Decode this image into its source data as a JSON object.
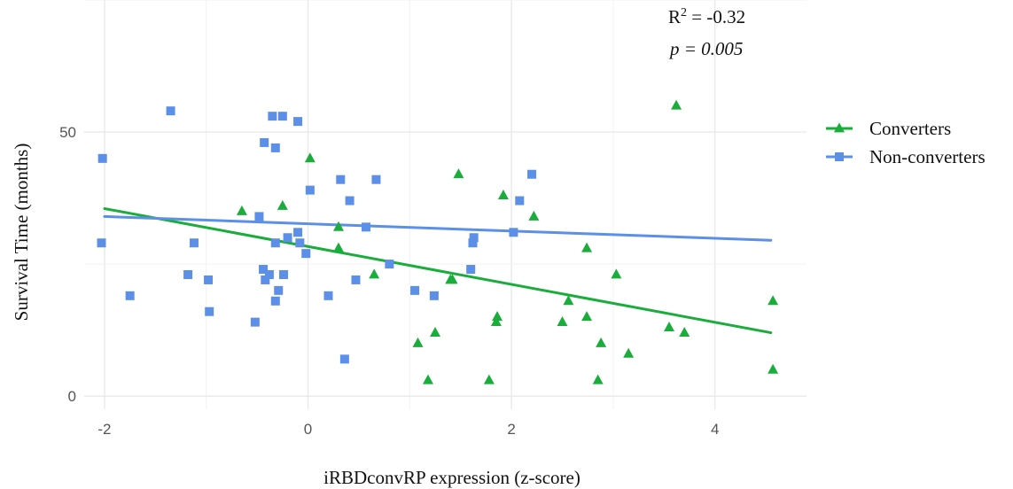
{
  "chart_data": {
    "type": "scatter",
    "xlabel": "iRBDconvRP expression (z-score)",
    "ylabel": "Survival Time (months)",
    "xlim": [
      -2.2,
      4.9
    ],
    "ylim": [
      -2.5,
      75
    ],
    "xticks": [
      -2,
      0,
      2,
      4
    ],
    "yticks": [
      0,
      50
    ],
    "xtick_labels": [
      "-2",
      "0",
      "2",
      "4"
    ],
    "ytick_labels": [
      "0",
      "50"
    ],
    "grid": true,
    "legend_position": "right",
    "annotation": {
      "r2_prefix": "R",
      "r2_sup": "2",
      "r2_value": " = -0.32",
      "p_label": "p",
      "p_value": " = 0.005"
    },
    "series": [
      {
        "name": "Converters",
        "color": "#1aad3c",
        "marker": "triangle",
        "trend": {
          "x": [
            -2.0,
            4.55
          ],
          "y": [
            35.5,
            12.0
          ]
        },
        "points": [
          [
            -0.65,
            35
          ],
          [
            -0.25,
            36
          ],
          [
            0.02,
            45
          ],
          [
            0.3,
            32
          ],
          [
            0.3,
            28
          ],
          [
            0.65,
            23
          ],
          [
            1.08,
            10
          ],
          [
            1.18,
            3
          ],
          [
            1.25,
            12
          ],
          [
            1.4,
            22
          ],
          [
            1.42,
            22
          ],
          [
            1.48,
            42
          ],
          [
            1.78,
            3
          ],
          [
            1.85,
            14
          ],
          [
            1.86,
            15
          ],
          [
            1.92,
            38
          ],
          [
            2.22,
            34
          ],
          [
            2.5,
            14
          ],
          [
            2.56,
            18
          ],
          [
            2.74,
            28
          ],
          [
            2.74,
            15
          ],
          [
            2.85,
            3
          ],
          [
            2.88,
            10
          ],
          [
            3.03,
            23
          ],
          [
            3.15,
            8
          ],
          [
            3.55,
            13
          ],
          [
            3.62,
            55
          ],
          [
            3.7,
            12
          ],
          [
            4.57,
            18
          ],
          [
            4.57,
            5
          ]
        ]
      },
      {
        "name": "Non-converters",
        "color": "#5b8fe8",
        "marker": "square",
        "trend": {
          "x": [
            -2.0,
            4.55
          ],
          "y": [
            34.0,
            29.5
          ]
        },
        "points": [
          [
            -2.02,
            45
          ],
          [
            -2.03,
            29
          ],
          [
            -1.75,
            19
          ],
          [
            -1.35,
            54
          ],
          [
            -1.18,
            23
          ],
          [
            -1.12,
            29
          ],
          [
            -0.98,
            22
          ],
          [
            -0.97,
            16
          ],
          [
            -0.52,
            14
          ],
          [
            -0.48,
            34
          ],
          [
            -0.44,
            24
          ],
          [
            -0.43,
            48
          ],
          [
            -0.42,
            22
          ],
          [
            -0.38,
            23
          ],
          [
            -0.35,
            53
          ],
          [
            -0.32,
            47
          ],
          [
            -0.32,
            29
          ],
          [
            -0.32,
            18
          ],
          [
            -0.29,
            20
          ],
          [
            -0.25,
            53
          ],
          [
            -0.24,
            23
          ],
          [
            -0.2,
            30
          ],
          [
            -0.1,
            52
          ],
          [
            -0.1,
            31
          ],
          [
            -0.08,
            29
          ],
          [
            -0.02,
            27
          ],
          [
            0.02,
            39
          ],
          [
            0.2,
            19
          ],
          [
            0.32,
            41
          ],
          [
            0.36,
            7
          ],
          [
            0.41,
            37
          ],
          [
            0.47,
            22
          ],
          [
            0.57,
            32
          ],
          [
            0.67,
            41
          ],
          [
            0.8,
            25
          ],
          [
            1.05,
            20
          ],
          [
            1.24,
            19
          ],
          [
            1.6,
            24
          ],
          [
            1.62,
            29
          ],
          [
            1.63,
            30
          ],
          [
            2.02,
            31
          ],
          [
            2.08,
            37
          ],
          [
            2.2,
            42
          ]
        ]
      }
    ]
  }
}
